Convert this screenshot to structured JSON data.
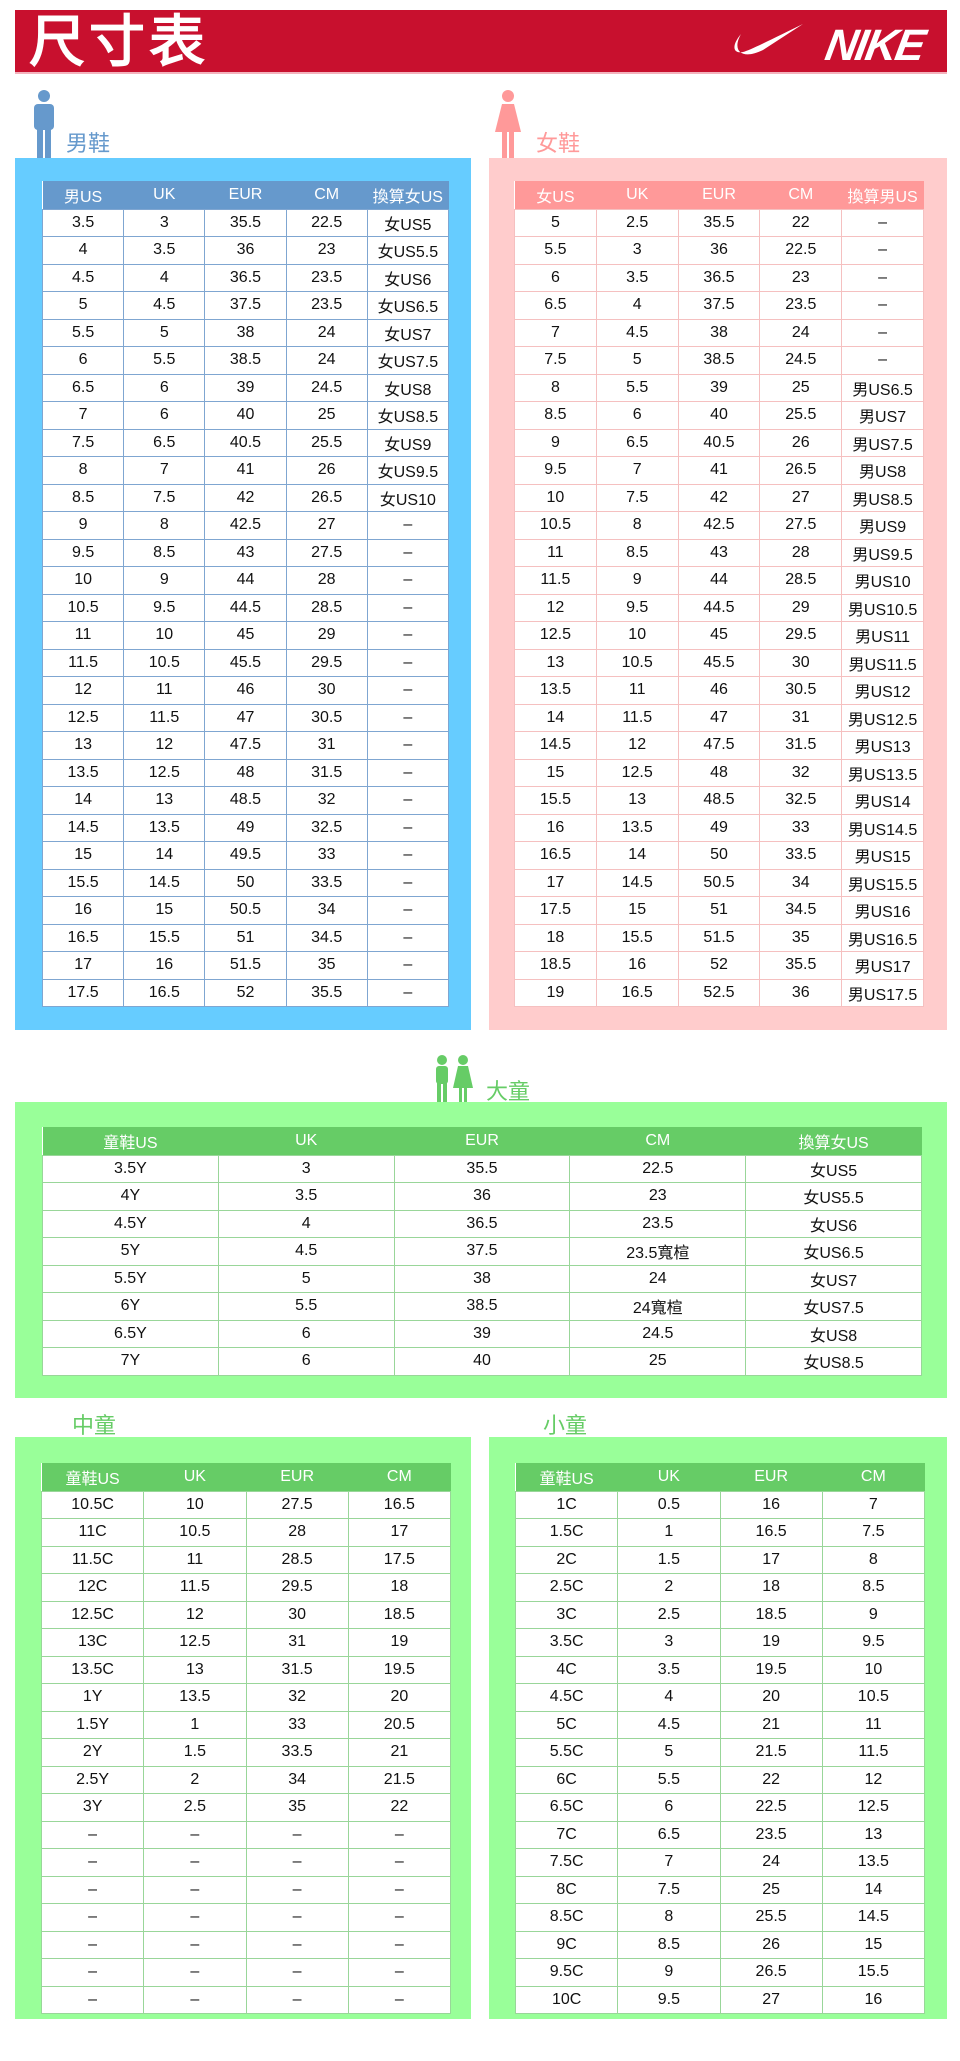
{
  "header": {
    "title": "尺寸表",
    "logo_text": "NIKE"
  },
  "colors": {
    "header_red": "#c8102e",
    "men_panel": "#66ccff",
    "men_header": "#6699cc",
    "women_panel": "#ffcccc",
    "women_header": "#ff9999",
    "kids_panel": "#99ff99",
    "kids_header": "#66cc66"
  },
  "men": {
    "label": "男鞋",
    "icon": "man-icon",
    "columns": [
      "男US",
      "UK",
      "EUR",
      "CM",
      "換算女US"
    ],
    "rows": [
      [
        "3.5",
        "3",
        "35.5",
        "22.5",
        "女US5"
      ],
      [
        "4",
        "3.5",
        "36",
        "23",
        "女US5.5"
      ],
      [
        "4.5",
        "4",
        "36.5",
        "23.5",
        "女US6"
      ],
      [
        "5",
        "4.5",
        "37.5",
        "23.5",
        "女US6.5"
      ],
      [
        "5.5",
        "5",
        "38",
        "24",
        "女US7"
      ],
      [
        "6",
        "5.5",
        "38.5",
        "24",
        "女US7.5"
      ],
      [
        "6.5",
        "6",
        "39",
        "24.5",
        "女US8"
      ],
      [
        "7",
        "6",
        "40",
        "25",
        "女US8.5"
      ],
      [
        "7.5",
        "6.5",
        "40.5",
        "25.5",
        "女US9"
      ],
      [
        "8",
        "7",
        "41",
        "26",
        "女US9.5"
      ],
      [
        "8.5",
        "7.5",
        "42",
        "26.5",
        "女US10"
      ],
      [
        "9",
        "8",
        "42.5",
        "27",
        "–"
      ],
      [
        "9.5",
        "8.5",
        "43",
        "27.5",
        "–"
      ],
      [
        "10",
        "9",
        "44",
        "28",
        "–"
      ],
      [
        "10.5",
        "9.5",
        "44.5",
        "28.5",
        "–"
      ],
      [
        "11",
        "10",
        "45",
        "29",
        "–"
      ],
      [
        "11.5",
        "10.5",
        "45.5",
        "29.5",
        "–"
      ],
      [
        "12",
        "11",
        "46",
        "30",
        "–"
      ],
      [
        "12.5",
        "11.5",
        "47",
        "30.5",
        "–"
      ],
      [
        "13",
        "12",
        "47.5",
        "31",
        "–"
      ],
      [
        "13.5",
        "12.5",
        "48",
        "31.5",
        "–"
      ],
      [
        "14",
        "13",
        "48.5",
        "32",
        "–"
      ],
      [
        "14.5",
        "13.5",
        "49",
        "32.5",
        "–"
      ],
      [
        "15",
        "14",
        "49.5",
        "33",
        "–"
      ],
      [
        "15.5",
        "14.5",
        "50",
        "33.5",
        "–"
      ],
      [
        "16",
        "15",
        "50.5",
        "34",
        "–"
      ],
      [
        "16.5",
        "15.5",
        "51",
        "34.5",
        "–"
      ],
      [
        "17",
        "16",
        "51.5",
        "35",
        "–"
      ],
      [
        "17.5",
        "16.5",
        "52",
        "35.5",
        "–"
      ]
    ]
  },
  "women": {
    "label": "女鞋",
    "icon": "woman-icon",
    "columns": [
      "女US",
      "UK",
      "EUR",
      "CM",
      "換算男US"
    ],
    "rows": [
      [
        "5",
        "2.5",
        "35.5",
        "22",
        "–"
      ],
      [
        "5.5",
        "3",
        "36",
        "22.5",
        "–"
      ],
      [
        "6",
        "3.5",
        "36.5",
        "23",
        "–"
      ],
      [
        "6.5",
        "4",
        "37.5",
        "23.5",
        "–"
      ],
      [
        "7",
        "4.5",
        "38",
        "24",
        "–"
      ],
      [
        "7.5",
        "5",
        "38.5",
        "24.5",
        "–"
      ],
      [
        "8",
        "5.5",
        "39",
        "25",
        "男US6.5"
      ],
      [
        "8.5",
        "6",
        "40",
        "25.5",
        "男US7"
      ],
      [
        "9",
        "6.5",
        "40.5",
        "26",
        "男US7.5"
      ],
      [
        "9.5",
        "7",
        "41",
        "26.5",
        "男US8"
      ],
      [
        "10",
        "7.5",
        "42",
        "27",
        "男US8.5"
      ],
      [
        "10.5",
        "8",
        "42.5",
        "27.5",
        "男US9"
      ],
      [
        "11",
        "8.5",
        "43",
        "28",
        "男US9.5"
      ],
      [
        "11.5",
        "9",
        "44",
        "28.5",
        "男US10"
      ],
      [
        "12",
        "9.5",
        "44.5",
        "29",
        "男US10.5"
      ],
      [
        "12.5",
        "10",
        "45",
        "29.5",
        "男US11"
      ],
      [
        "13",
        "10.5",
        "45.5",
        "30",
        "男US11.5"
      ],
      [
        "13.5",
        "11",
        "46",
        "30.5",
        "男US12"
      ],
      [
        "14",
        "11.5",
        "47",
        "31",
        "男US12.5"
      ],
      [
        "14.5",
        "12",
        "47.5",
        "31.5",
        "男US13"
      ],
      [
        "15",
        "12.5",
        "48",
        "32",
        "男US13.5"
      ],
      [
        "15.5",
        "13",
        "48.5",
        "32.5",
        "男US14"
      ],
      [
        "16",
        "13.5",
        "49",
        "33",
        "男US14.5"
      ],
      [
        "16.5",
        "14",
        "50",
        "33.5",
        "男US15"
      ],
      [
        "17",
        "14.5",
        "50.5",
        "34",
        "男US15.5"
      ],
      [
        "17.5",
        "15",
        "51",
        "34.5",
        "男US16"
      ],
      [
        "18",
        "15.5",
        "51.5",
        "35",
        "男US16.5"
      ],
      [
        "18.5",
        "16",
        "52",
        "35.5",
        "男US17"
      ],
      [
        "19",
        "16.5",
        "52.5",
        "36",
        "男US17.5"
      ]
    ]
  },
  "big_kids": {
    "label": "大童",
    "icon": "children-icon",
    "columns": [
      "童鞋US",
      "UK",
      "EUR",
      "CM",
      "換算女US"
    ],
    "rows": [
      [
        "3.5Y",
        "3",
        "35.5",
        "22.5",
        "女US5"
      ],
      [
        "4Y",
        "3.5",
        "36",
        "23",
        "女US5.5"
      ],
      [
        "4.5Y",
        "4",
        "36.5",
        "23.5",
        "女US6"
      ],
      [
        "5Y",
        "4.5",
        "37.5",
        "23.5寬楦",
        "女US6.5"
      ],
      [
        "5.5Y",
        "5",
        "38",
        "24",
        "女US7"
      ],
      [
        "6Y",
        "5.5",
        "38.5",
        "24寬楦",
        "女US7.5"
      ],
      [
        "6.5Y",
        "6",
        "39",
        "24.5",
        "女US8"
      ],
      [
        "7Y",
        "6",
        "40",
        "25",
        "女US8.5"
      ]
    ]
  },
  "mid_kids": {
    "label": "中童",
    "columns": [
      "童鞋US",
      "UK",
      "EUR",
      "CM"
    ],
    "rows": [
      [
        "10.5C",
        "10",
        "27.5",
        "16.5"
      ],
      [
        "11C",
        "10.5",
        "28",
        "17"
      ],
      [
        "11.5C",
        "11",
        "28.5",
        "17.5"
      ],
      [
        "12C",
        "11.5",
        "29.5",
        "18"
      ],
      [
        "12.5C",
        "12",
        "30",
        "18.5"
      ],
      [
        "13C",
        "12.5",
        "31",
        "19"
      ],
      [
        "13.5C",
        "13",
        "31.5",
        "19.5"
      ],
      [
        "1Y",
        "13.5",
        "32",
        "20"
      ],
      [
        "1.5Y",
        "1",
        "33",
        "20.5"
      ],
      [
        "2Y",
        "1.5",
        "33.5",
        "21"
      ],
      [
        "2.5Y",
        "2",
        "34",
        "21.5"
      ],
      [
        "3Y",
        "2.5",
        "35",
        "22"
      ],
      [
        "–",
        "–",
        "–",
        "–"
      ],
      [
        "–",
        "–",
        "–",
        "–"
      ],
      [
        "–",
        "–",
        "–",
        "–"
      ],
      [
        "–",
        "–",
        "–",
        "–"
      ],
      [
        "–",
        "–",
        "–",
        "–"
      ],
      [
        "–",
        "–",
        "–",
        "–"
      ],
      [
        "–",
        "–",
        "–",
        "–"
      ]
    ]
  },
  "small_kids": {
    "label": "小童",
    "columns": [
      "童鞋US",
      "UK",
      "EUR",
      "CM"
    ],
    "rows": [
      [
        "1C",
        "0.5",
        "16",
        "7"
      ],
      [
        "1.5C",
        "1",
        "16.5",
        "7.5"
      ],
      [
        "2C",
        "1.5",
        "17",
        "8"
      ],
      [
        "2.5C",
        "2",
        "18",
        "8.5"
      ],
      [
        "3C",
        "2.5",
        "18.5",
        "9"
      ],
      [
        "3.5C",
        "3",
        "19",
        "9.5"
      ],
      [
        "4C",
        "3.5",
        "19.5",
        "10"
      ],
      [
        "4.5C",
        "4",
        "20",
        "10.5"
      ],
      [
        "5C",
        "4.5",
        "21",
        "11"
      ],
      [
        "5.5C",
        "5",
        "21.5",
        "11.5"
      ],
      [
        "6C",
        "5.5",
        "22",
        "12"
      ],
      [
        "6.5C",
        "6",
        "22.5",
        "12.5"
      ],
      [
        "7C",
        "6.5",
        "23.5",
        "13"
      ],
      [
        "7.5C",
        "7",
        "24",
        "13.5"
      ],
      [
        "8C",
        "7.5",
        "25",
        "14"
      ],
      [
        "8.5C",
        "8",
        "25.5",
        "14.5"
      ],
      [
        "9C",
        "8.5",
        "26",
        "15"
      ],
      [
        "9.5C",
        "9",
        "26.5",
        "15.5"
      ],
      [
        "10C",
        "9.5",
        "27",
        "16"
      ]
    ]
  }
}
